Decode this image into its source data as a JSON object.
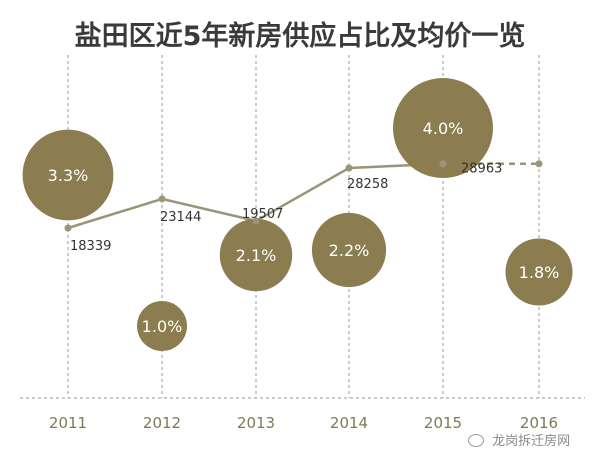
{
  "title": "盐田区近5年新房供应占比及均价一览",
  "watermark": "龙岗拆迁房网",
  "colors": {
    "bubble": "#8b7d4f",
    "line": "#9a9578",
    "grid": "#9a9a9a",
    "axis_text": "#7f7a52",
    "label": "#333333"
  },
  "chart_data": {
    "type": "bubble-line",
    "title": "盐田区近5年新房供应占比及均价一览",
    "categories": [
      "2011",
      "2012",
      "2013",
      "2014",
      "2015",
      "2016"
    ],
    "price_line": {
      "values": [
        18339,
        23144,
        19507,
        28258,
        28963
      ],
      "value_labels": [
        "18339",
        "23144",
        "19507",
        "28258",
        "28963"
      ],
      "extension_2016": 28963,
      "extension_dashed": true
    },
    "supply_share": {
      "values": [
        3.3,
        1.0,
        2.1,
        2.2,
        4.0,
        1.8
      ],
      "labels": [
        "3.3%",
        "1.0%",
        "2.1%",
        "2.2%",
        "4.0%",
        "1.8%"
      ],
      "bubble_vertical_position_arbitrary": true
    },
    "grid": "vertical dashed"
  }
}
